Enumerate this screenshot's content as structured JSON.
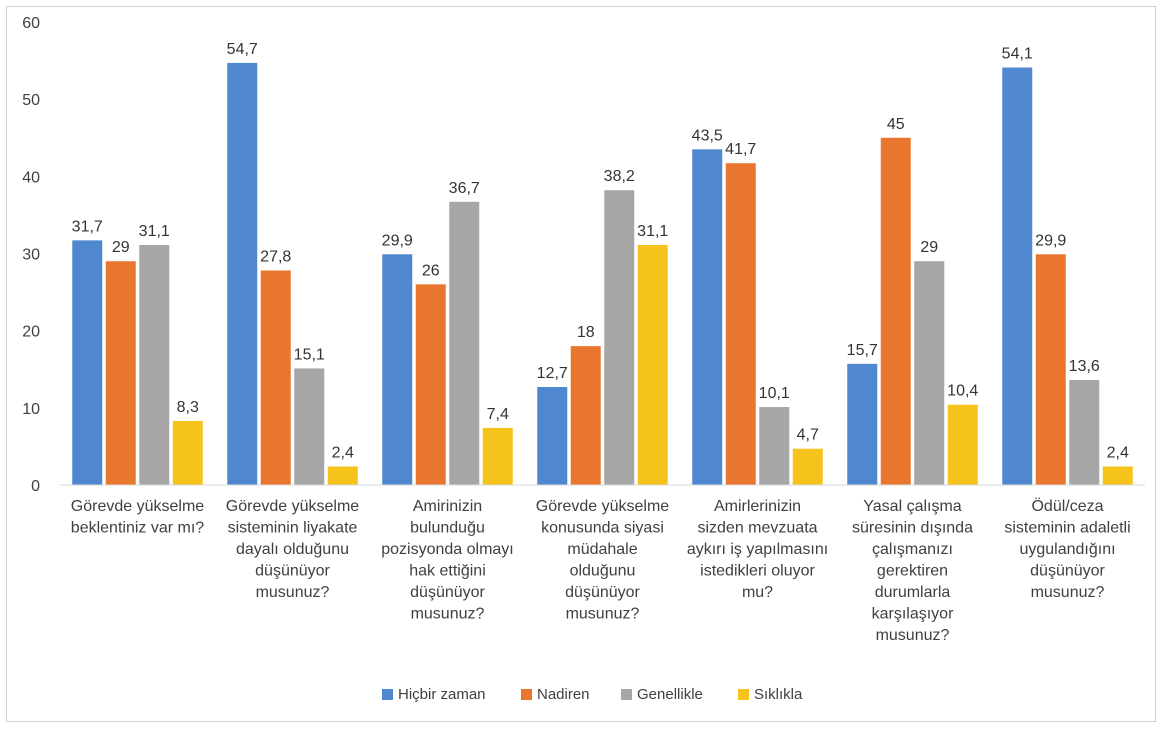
{
  "chart_data": {
    "type": "bar",
    "ylim": [
      0,
      60
    ],
    "yticks": [
      0,
      10,
      20,
      30,
      40,
      50,
      60
    ],
    "grid": false,
    "legend_position": "bottom",
    "categories": [
      [
        "Görevde yükselme",
        "beklentiniz var mı?"
      ],
      [
        "Görevde yükselme",
        "sisteminin liyakate",
        "dayalı olduğunu",
        "düşünüyor",
        "musunuz?"
      ],
      [
        "Amirinizin",
        "bulunduğu",
        "pozisyonda olmayı",
        "hak ettiğini",
        "düşünüyor",
        "musunuz?"
      ],
      [
        "Görevde yükselme",
        "konusunda siyasi",
        "müdahale",
        "olduğunu",
        "düşünüyor",
        "musunuz?"
      ],
      [
        "Amirlerinizin",
        "sizden mevzuata",
        "aykırı iş yapılmasını",
        "istedikleri oluyor",
        "mu?"
      ],
      [
        "Yasal çalışma",
        "süresinin dışında",
        "çalışmanızı",
        "gerektiren",
        "durumlarla",
        "karşılaşıyor",
        "musunuz?"
      ],
      [
        "Ödül/ceza",
        "sisteminin adaletli",
        "uygulandığını",
        "düşünüyor",
        "musunuz?"
      ]
    ],
    "series": [
      {
        "name": "Hiçbir zaman",
        "color": "#4f88cf",
        "values": [
          31.7,
          54.7,
          29.9,
          12.7,
          43.5,
          15.7,
          54.1
        ],
        "labels": [
          "31,7",
          "54,7",
          "29,9",
          "12,7",
          "43,5",
          "15,7",
          "54,1"
        ]
      },
      {
        "name": "Nadiren",
        "color": "#e9762f",
        "values": [
          29,
          27.8,
          26,
          18,
          41.7,
          45,
          29.9
        ],
        "labels": [
          "29",
          "27,8",
          "26",
          "18",
          "41,7",
          "45",
          "29,9"
        ]
      },
      {
        "name": "Genellikle",
        "color": "#a6a6a6",
        "values": [
          31.1,
          15.1,
          36.7,
          38.2,
          10.1,
          29,
          13.6
        ],
        "labels": [
          "31,1",
          "15,1",
          "36,7",
          "38,2",
          "10,1",
          "29",
          "13,6"
        ]
      },
      {
        "name": "Sıklıkla",
        "color": "#f6c21c",
        "values": [
          8.3,
          2.4,
          7.4,
          31.1,
          4.7,
          10.4,
          2.4
        ],
        "labels": [
          "8,3",
          "2,4",
          "7,4",
          "31,1",
          "4,7",
          "10,4",
          "2,4"
        ]
      }
    ]
  }
}
